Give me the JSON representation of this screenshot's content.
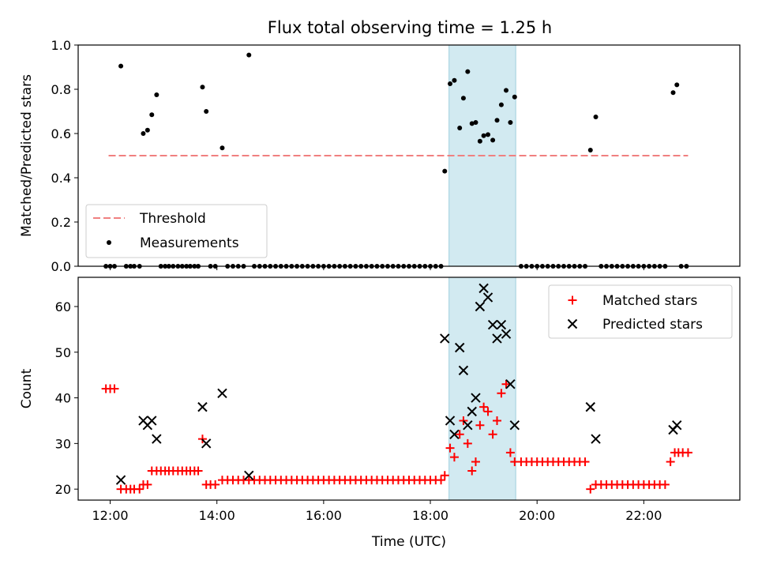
{
  "chart_data": [
    {
      "type": "scatter",
      "title": "Flux total observing time = 1.25 h",
      "xlabel": "",
      "ylabel": "Matched/Predicted stars",
      "ylim": [
        0,
        1.0
      ],
      "yticks": [
        "0.0",
        "0.2",
        "0.4",
        "0.6",
        "0.8",
        "1.0"
      ],
      "ytick_values": [
        0,
        0.2,
        0.4,
        0.6,
        0.8,
        1.0
      ],
      "xlim_hours": [
        11.4,
        23.8
      ],
      "highlight_span_hours": [
        18.35,
        19.6
      ],
      "legend_location": "lower-left",
      "threshold": {
        "name": "Threshold",
        "value": 0.5,
        "x_range": [
          11.97,
          22.83
        ],
        "color": "#f08080"
      },
      "measurements": {
        "name": "Measurements",
        "color": "#000000",
        "points": [
          [
            11.92,
            0
          ],
          [
            12.0,
            0
          ],
          [
            12.08,
            0
          ],
          [
            12.2,
            0.905
          ],
          [
            12.3,
            0
          ],
          [
            12.38,
            0
          ],
          [
            12.45,
            0
          ],
          [
            12.55,
            0
          ],
          [
            12.62,
            0.6
          ],
          [
            12.7,
            0.615
          ],
          [
            12.78,
            0.685
          ],
          [
            12.87,
            0.775
          ],
          [
            12.95,
            0
          ],
          [
            13.03,
            0
          ],
          [
            13.1,
            0
          ],
          [
            13.18,
            0
          ],
          [
            13.27,
            0
          ],
          [
            13.35,
            0
          ],
          [
            13.43,
            0
          ],
          [
            13.5,
            0
          ],
          [
            13.58,
            0
          ],
          [
            13.65,
            0
          ],
          [
            13.73,
            0.81
          ],
          [
            13.8,
            0.7
          ],
          [
            13.88,
            0
          ],
          [
            13.97,
            0
          ],
          [
            14.1,
            0.535
          ],
          [
            14.2,
            0
          ],
          [
            14.3,
            0
          ],
          [
            14.4,
            0
          ],
          [
            14.5,
            0
          ],
          [
            14.6,
            0.955
          ],
          [
            14.7,
            0
          ],
          [
            14.8,
            0
          ],
          [
            14.9,
            0
          ],
          [
            15.0,
            0
          ],
          [
            15.1,
            0
          ],
          [
            15.2,
            0
          ],
          [
            15.3,
            0
          ],
          [
            15.4,
            0
          ],
          [
            15.5,
            0
          ],
          [
            15.6,
            0
          ],
          [
            15.7,
            0
          ],
          [
            15.8,
            0
          ],
          [
            15.9,
            0
          ],
          [
            16.0,
            0
          ],
          [
            16.1,
            0
          ],
          [
            16.2,
            0
          ],
          [
            16.3,
            0
          ],
          [
            16.4,
            0
          ],
          [
            16.5,
            0
          ],
          [
            16.6,
            0
          ],
          [
            16.7,
            0
          ],
          [
            16.8,
            0
          ],
          [
            16.9,
            0
          ],
          [
            17.0,
            0
          ],
          [
            17.1,
            0
          ],
          [
            17.2,
            0
          ],
          [
            17.3,
            0
          ],
          [
            17.4,
            0
          ],
          [
            17.5,
            0
          ],
          [
            17.6,
            0
          ],
          [
            17.7,
            0
          ],
          [
            17.8,
            0
          ],
          [
            17.9,
            0
          ],
          [
            18.0,
            0
          ],
          [
            18.1,
            0
          ],
          [
            18.2,
            0
          ],
          [
            18.27,
            0.43
          ],
          [
            18.37,
            0.825
          ],
          [
            18.45,
            0.84
          ],
          [
            18.55,
            0.625
          ],
          [
            18.62,
            0.76
          ],
          [
            18.7,
            0.88
          ],
          [
            18.78,
            0.645
          ],
          [
            18.85,
            0.65
          ],
          [
            18.93,
            0.565
          ],
          [
            19.0,
            0.59
          ],
          [
            19.08,
            0.595
          ],
          [
            19.17,
            0.57
          ],
          [
            19.25,
            0.66
          ],
          [
            19.33,
            0.73
          ],
          [
            19.42,
            0.795
          ],
          [
            19.5,
            0.65
          ],
          [
            19.58,
            0.765
          ],
          [
            19.7,
            0
          ],
          [
            19.8,
            0
          ],
          [
            19.9,
            0
          ],
          [
            20.0,
            0
          ],
          [
            20.1,
            0
          ],
          [
            20.2,
            0
          ],
          [
            20.3,
            0
          ],
          [
            20.4,
            0
          ],
          [
            20.5,
            0
          ],
          [
            20.6,
            0
          ],
          [
            20.7,
            0
          ],
          [
            20.8,
            0
          ],
          [
            20.9,
            0
          ],
          [
            21.0,
            0.525
          ],
          [
            21.1,
            0.675
          ],
          [
            21.2,
            0
          ],
          [
            21.3,
            0
          ],
          [
            21.4,
            0
          ],
          [
            21.5,
            0
          ],
          [
            21.6,
            0
          ],
          [
            21.7,
            0
          ],
          [
            21.8,
            0
          ],
          [
            21.9,
            0
          ],
          [
            22.0,
            0
          ],
          [
            22.1,
            0
          ],
          [
            22.2,
            0
          ],
          [
            22.3,
            0
          ],
          [
            22.4,
            0
          ],
          [
            22.55,
            0.785
          ],
          [
            22.62,
            0.82
          ],
          [
            22.7,
            0
          ],
          [
            22.8,
            0
          ]
        ]
      }
    },
    {
      "type": "scatter",
      "title": "",
      "xlabel": "Time (UTC)",
      "ylabel": "Count",
      "ylim": [
        17.6,
        66.4
      ],
      "yticks": [
        "20",
        "30",
        "40",
        "50",
        "60"
      ],
      "ytick_values": [
        20,
        30,
        40,
        50,
        60
      ],
      "xticks": [
        "12:00",
        "14:00",
        "16:00",
        "18:00",
        "20:00",
        "22:00"
      ],
      "xtick_values": [
        12,
        14,
        16,
        18,
        20,
        22
      ],
      "xlim_hours": [
        11.4,
        23.8
      ],
      "highlight_span_hours": [
        18.35,
        19.6
      ],
      "legend_location": "upper-right",
      "series": [
        {
          "name": "Matched stars",
          "marker": "plus",
          "color": "#ff0000",
          "points": [
            [
              11.92,
              42
            ],
            [
              12.0,
              42
            ],
            [
              12.08,
              42
            ],
            [
              12.2,
              20
            ],
            [
              12.3,
              20
            ],
            [
              12.38,
              20
            ],
            [
              12.45,
              20
            ],
            [
              12.55,
              20
            ],
            [
              12.62,
              21
            ],
            [
              12.7,
              21
            ],
            [
              12.78,
              24
            ],
            [
              12.87,
              24
            ],
            [
              12.95,
              24
            ],
            [
              13.03,
              24
            ],
            [
              13.1,
              24
            ],
            [
              13.18,
              24
            ],
            [
              13.27,
              24
            ],
            [
              13.35,
              24
            ],
            [
              13.43,
              24
            ],
            [
              13.5,
              24
            ],
            [
              13.58,
              24
            ],
            [
              13.65,
              24
            ],
            [
              13.73,
              31
            ],
            [
              13.8,
              21
            ],
            [
              13.88,
              21
            ],
            [
              13.97,
              21
            ],
            [
              14.1,
              22
            ],
            [
              14.2,
              22
            ],
            [
              14.3,
              22
            ],
            [
              14.4,
              22
            ],
            [
              14.5,
              22
            ],
            [
              14.6,
              22
            ],
            [
              14.7,
              22
            ],
            [
              14.8,
              22
            ],
            [
              14.9,
              22
            ],
            [
              15.0,
              22
            ],
            [
              15.1,
              22
            ],
            [
              15.2,
              22
            ],
            [
              15.3,
              22
            ],
            [
              15.4,
              22
            ],
            [
              15.5,
              22
            ],
            [
              15.6,
              22
            ],
            [
              15.7,
              22
            ],
            [
              15.8,
              22
            ],
            [
              15.9,
              22
            ],
            [
              16.0,
              22
            ],
            [
              16.1,
              22
            ],
            [
              16.2,
              22
            ],
            [
              16.3,
              22
            ],
            [
              16.4,
              22
            ],
            [
              16.5,
              22
            ],
            [
              16.6,
              22
            ],
            [
              16.7,
              22
            ],
            [
              16.8,
              22
            ],
            [
              16.9,
              22
            ],
            [
              17.0,
              22
            ],
            [
              17.1,
              22
            ],
            [
              17.2,
              22
            ],
            [
              17.3,
              22
            ],
            [
              17.4,
              22
            ],
            [
              17.5,
              22
            ],
            [
              17.6,
              22
            ],
            [
              17.7,
              22
            ],
            [
              17.8,
              22
            ],
            [
              17.9,
              22
            ],
            [
              18.0,
              22
            ],
            [
              18.1,
              22
            ],
            [
              18.2,
              22
            ],
            [
              18.27,
              23
            ],
            [
              18.37,
              29
            ],
            [
              18.45,
              27
            ],
            [
              18.55,
              32
            ],
            [
              18.62,
              35
            ],
            [
              18.7,
              30
            ],
            [
              18.78,
              24
            ],
            [
              18.85,
              26
            ],
            [
              18.93,
              34
            ],
            [
              19.0,
              38
            ],
            [
              19.08,
              37
            ],
            [
              19.17,
              32
            ],
            [
              19.25,
              35
            ],
            [
              19.33,
              41
            ],
            [
              19.42,
              43
            ],
            [
              19.5,
              28
            ],
            [
              19.58,
              26
            ],
            [
              19.7,
              26
            ],
            [
              19.8,
              26
            ],
            [
              19.9,
              26
            ],
            [
              20.0,
              26
            ],
            [
              20.1,
              26
            ],
            [
              20.2,
              26
            ],
            [
              20.3,
              26
            ],
            [
              20.4,
              26
            ],
            [
              20.5,
              26
            ],
            [
              20.6,
              26
            ],
            [
              20.7,
              26
            ],
            [
              20.8,
              26
            ],
            [
              20.9,
              26
            ],
            [
              21.0,
              20
            ],
            [
              21.1,
              21
            ],
            [
              21.2,
              21
            ],
            [
              21.3,
              21
            ],
            [
              21.4,
              21
            ],
            [
              21.5,
              21
            ],
            [
              21.6,
              21
            ],
            [
              21.7,
              21
            ],
            [
              21.8,
              21
            ],
            [
              21.9,
              21
            ],
            [
              22.0,
              21
            ],
            [
              22.1,
              21
            ],
            [
              22.2,
              21
            ],
            [
              22.3,
              21
            ],
            [
              22.4,
              21
            ],
            [
              22.5,
              26
            ],
            [
              22.58,
              28
            ],
            [
              22.65,
              28
            ],
            [
              22.73,
              28
            ],
            [
              22.83,
              28
            ]
          ]
        },
        {
          "name": "Predicted stars",
          "marker": "x",
          "color": "#000000",
          "points": [
            [
              12.2,
              22
            ],
            [
              12.62,
              35
            ],
            [
              12.7,
              34
            ],
            [
              12.78,
              35
            ],
            [
              12.87,
              31
            ],
            [
              13.73,
              38
            ],
            [
              13.8,
              30
            ],
            [
              14.1,
              41
            ],
            [
              14.6,
              23
            ],
            [
              18.27,
              53
            ],
            [
              18.37,
              35
            ],
            [
              18.45,
              32
            ],
            [
              18.55,
              51
            ],
            [
              18.62,
              46
            ],
            [
              18.7,
              34
            ],
            [
              18.78,
              37
            ],
            [
              18.85,
              40
            ],
            [
              18.93,
              60
            ],
            [
              19.0,
              64
            ],
            [
              19.08,
              62
            ],
            [
              19.17,
              56
            ],
            [
              19.25,
              53
            ],
            [
              19.33,
              56
            ],
            [
              19.42,
              54
            ],
            [
              19.5,
              43
            ],
            [
              19.58,
              34
            ],
            [
              21.0,
              38
            ],
            [
              21.1,
              31
            ],
            [
              22.55,
              33
            ],
            [
              22.62,
              34
            ]
          ]
        }
      ]
    }
  ]
}
